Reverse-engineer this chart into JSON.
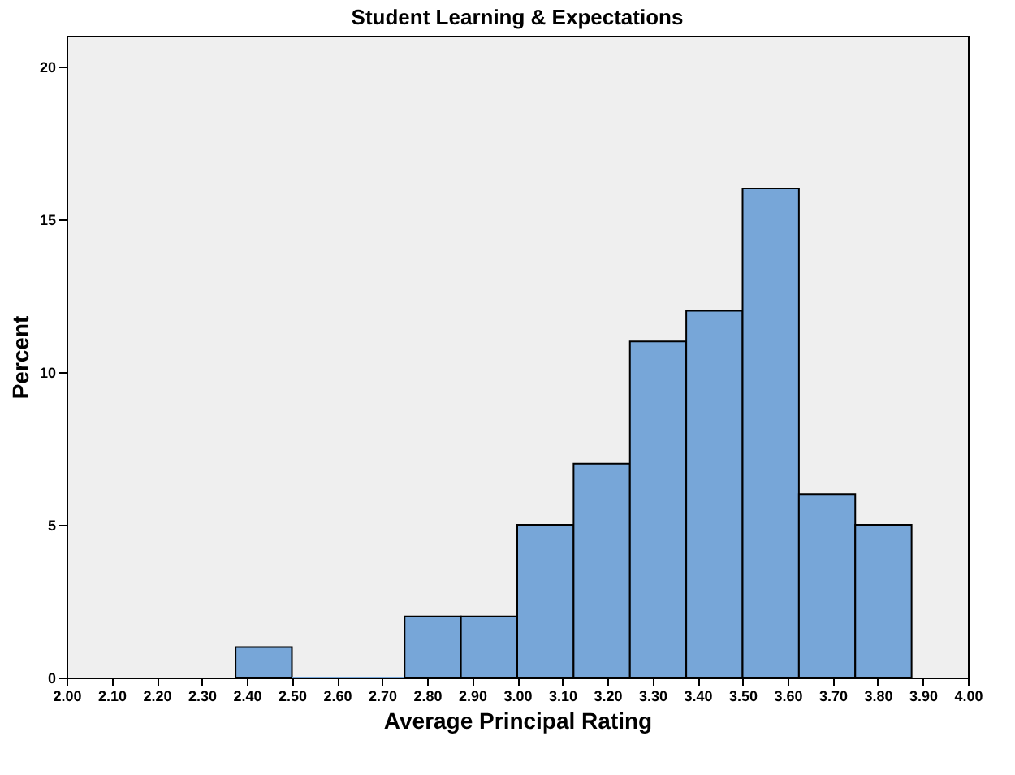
{
  "chart_data": {
    "type": "histogram",
    "title": "Student Learning & Expectations",
    "xlabel": "Average Principal Rating",
    "ylabel": "Percent",
    "bins": [
      2.375,
      2.5,
      2.625,
      2.75,
      2.875,
      3.0,
      3.125,
      3.25,
      3.375,
      3.5,
      3.625,
      3.75,
      3.875
    ],
    "values": [
      1,
      0,
      0,
      2,
      2,
      5,
      7,
      11,
      12,
      16,
      6,
      5
    ],
    "color": "#77a6d8",
    "xlim": [
      2.0,
      4.0
    ],
    "xticks": [
      {
        "value": 2.0,
        "label": "2.00"
      },
      {
        "value": 2.1,
        "label": "2.10"
      },
      {
        "value": 2.2,
        "label": "2.20"
      },
      {
        "value": 2.3,
        "label": "2.30"
      },
      {
        "value": 2.4,
        "label": "2.40"
      },
      {
        "value": 2.5,
        "label": "2.50"
      },
      {
        "value": 2.6,
        "label": "2.60"
      },
      {
        "value": 2.7,
        "label": "2.70"
      },
      {
        "value": 2.8,
        "label": "2.80"
      },
      {
        "value": 2.9,
        "label": "2.90"
      },
      {
        "value": 3.0,
        "label": "3.00"
      },
      {
        "value": 3.1,
        "label": "3.10"
      },
      {
        "value": 3.2,
        "label": "3.20"
      },
      {
        "value": 3.3,
        "label": "3.30"
      },
      {
        "value": 3.4,
        "label": "3.40"
      },
      {
        "value": 3.5,
        "label": "3.50"
      },
      {
        "value": 3.6,
        "label": "3.60"
      },
      {
        "value": 3.7,
        "label": "3.70"
      },
      {
        "value": 3.8,
        "label": "3.80"
      },
      {
        "value": 3.9,
        "label": "3.90"
      },
      {
        "value": 4.0,
        "label": "4.00"
      }
    ],
    "ylim": [
      0,
      21
    ],
    "yticks": [
      0,
      5,
      10,
      15,
      20
    ],
    "grid": false
  }
}
